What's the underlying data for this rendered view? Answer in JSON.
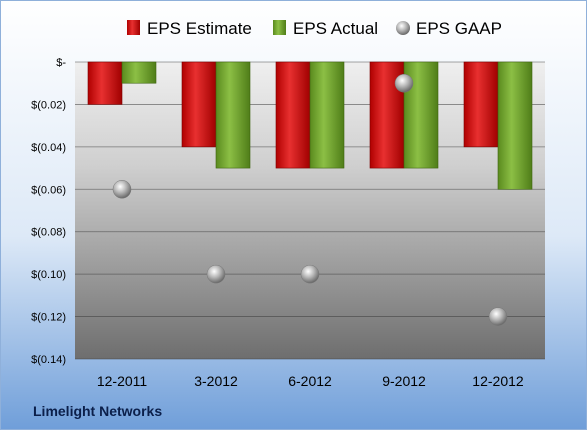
{
  "chart_data": {
    "type": "bar",
    "categories": [
      "12-2011",
      "3-2012",
      "6-2012",
      "9-2012",
      "12-2012"
    ],
    "series": [
      {
        "name": "EPS Estimate",
        "kind": "bar",
        "color": "#d01818",
        "values": [
          -0.02,
          -0.04,
          -0.05,
          -0.05,
          -0.04
        ]
      },
      {
        "name": "EPS Actual",
        "kind": "bar",
        "color": "#6a9a28",
        "values": [
          -0.01,
          -0.05,
          -0.05,
          -0.05,
          -0.06
        ]
      },
      {
        "name": "EPS GAAP",
        "kind": "scatter",
        "color": "#9a9a9a",
        "values": [
          -0.06,
          -0.1,
          -0.1,
          -0.01,
          -0.12
        ]
      }
    ],
    "y_ticks": [
      0,
      -0.02,
      -0.04,
      -0.06,
      -0.08,
      -0.1,
      -0.12,
      -0.14
    ],
    "y_tick_labels": [
      "$-",
      "$(0.02)",
      "$(0.04)",
      "$(0.06)",
      "$(0.08)",
      "$(0.10)",
      "$(0.12)",
      "$(0.14)"
    ],
    "ylim": [
      -0.14,
      0
    ],
    "grid": true,
    "legend_position": "top",
    "footer": "Limelight Networks"
  }
}
